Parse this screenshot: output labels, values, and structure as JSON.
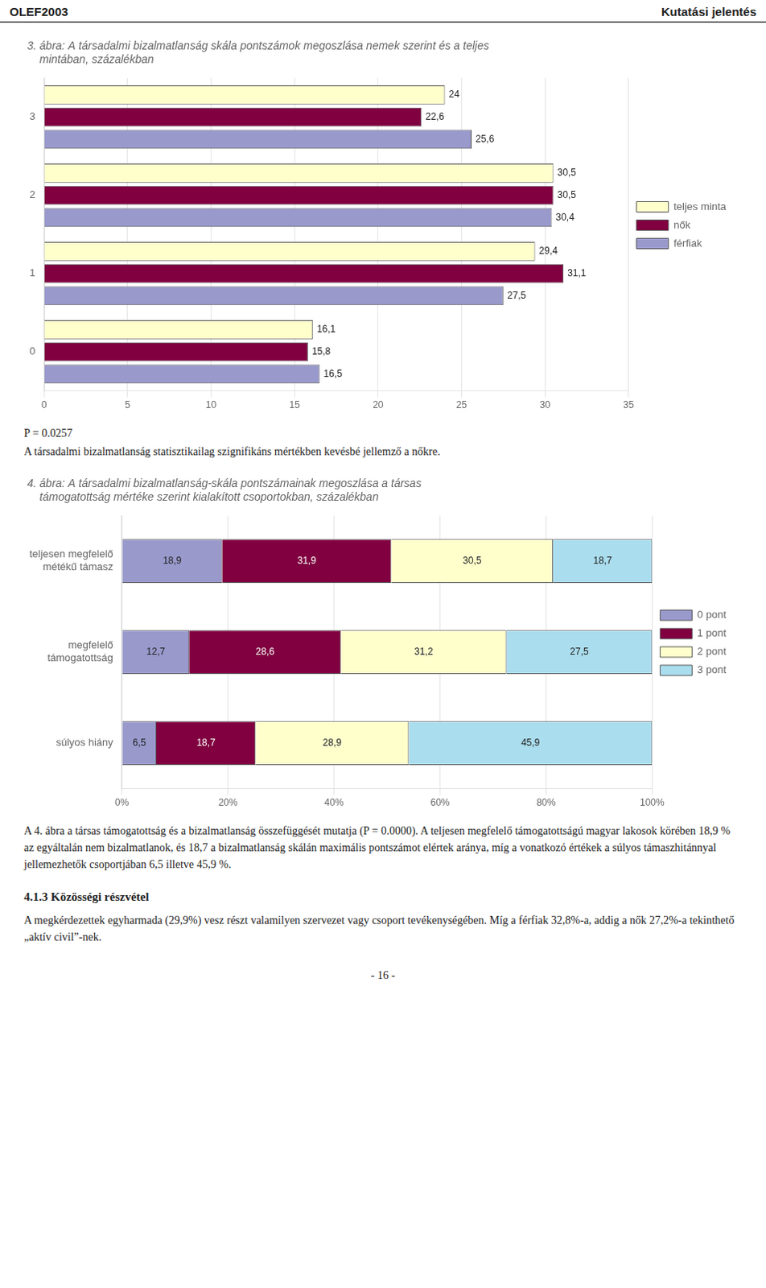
{
  "page_header_left": "OLEF2003",
  "page_header_right": "Kutatási jelentés",
  "p_text": "P = 0.0257",
  "body_text": "A társadalmi bizalmatlanság statisztikailag szignifikáns mértékben kevésbé jellemző a nőkre.",
  "footer_text": "A 4. ábra a társas támogatottság és a bizalmatlanság összefüggését mutatja (P = 0.0000). A teljesen megfelelő támogatottságú magyar lakosok körében 18,9 % az egyáltalán nem bizalmatlanok, és 18,7 a bizalmatlanság skálán maximális pontszámot elértek aránya, míg a vonatkozó értékek a súlyos támaszhitánnyal jellemezhetők csoportjában 6,5 illetve 45,9 %.",
  "section_title": "4.1.3 Közösségi részvétel",
  "section_text": "A megkérdezettek egyharmada (29,9%) vesz részt valamilyen szervezet vagy csoport tevékenységében. Míg a férfiak 32,8%-a, addig a nők 27,2%-a tekinthető „aktív civil”-nek.",
  "page_number": "- 16 -",
  "chart_data": [
    {
      "type": "bar",
      "orientation": "horizontal",
      "title": [
        "3. ábra: A társadalmi bizalmatlanság skála pontszámok megoszlása nemek szerint és a teljes",
        "    mintában, százalékban"
      ],
      "categories": [
        0,
        1,
        2,
        3
      ],
      "series": [
        {
          "name": "teljes minta",
          "color": "#FFFFCC",
          "values": [
            16.1,
            29.4,
            30.5,
            24.0
          ],
          "value_labels": [
            "16,1",
            "29,4",
            "30,5",
            "24"
          ]
        },
        {
          "name": "nők",
          "color": "#800040",
          "values": [
            15.8,
            31.1,
            30.5,
            22.6
          ],
          "value_labels": [
            "15,8",
            "31,1",
            "30,5",
            "22,6"
          ]
        },
        {
          "name": "férfiak",
          "color": "#9999CC",
          "values": [
            16.5,
            27.5,
            30.4,
            25.6
          ],
          "value_labels": [
            "16,5",
            "27,5",
            "30,4",
            "25,6"
          ]
        }
      ],
      "xlim": [
        0,
        35
      ],
      "xticks": [
        0,
        5,
        10,
        15,
        20,
        25,
        30,
        35
      ],
      "grid": true,
      "legend": "right",
      "data_labels": true
    },
    {
      "type": "bar",
      "orientation": "horizontal",
      "stacked": true,
      "title": [
        "4. ábra: A társadalmi bizalmatlanság-skála pontszámainak megoszlása a társas",
        "    támogatottság mértéke szerint kialakított csoportokban, százalékban"
      ],
      "categories": [
        "teljesen megfelelő\nmétékű támasz",
        "megfelelő\ntámogatottság",
        "súlyos hiány"
      ],
      "series": [
        {
          "name": "0 pont",
          "color": "#9999CC",
          "values": [
            18.9,
            12.7,
            6.5
          ],
          "value_labels": [
            "18,9",
            "12,7",
            "6,5"
          ]
        },
        {
          "name": "1 pont",
          "color": "#800040",
          "values": [
            31.9,
            28.6,
            18.7
          ],
          "value_labels": [
            "31,9",
            "28,6",
            "18,7"
          ]
        },
        {
          "name": "2 pont",
          "color": "#FFFFCC",
          "values": [
            30.5,
            31.2,
            28.9
          ],
          "value_labels": [
            "30,5",
            "31,2",
            "28,9"
          ]
        },
        {
          "name": "3 pont",
          "color": "#AADDEE",
          "values": [
            18.7,
            27.5,
            45.9
          ],
          "value_labels": [
            "18,7",
            "27,5",
            "45,9"
          ]
        }
      ],
      "xlim": [
        0,
        100
      ],
      "xticks": [
        {
          "value": 0,
          "label": "0%"
        },
        {
          "value": 20,
          "label": "20%"
        },
        {
          "value": 40,
          "label": "40%"
        },
        {
          "value": 60,
          "label": "60%"
        },
        {
          "value": 80,
          "label": "80%"
        },
        {
          "value": 100,
          "label": "100%"
        }
      ],
      "grid": true,
      "legend": "right",
      "data_labels": true
    }
  ]
}
